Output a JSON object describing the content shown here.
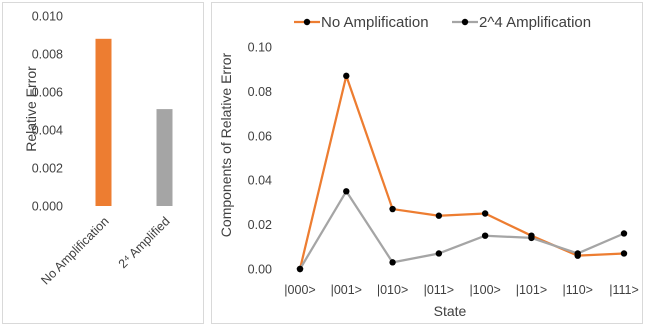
{
  "chart_data": [
    {
      "type": "bar",
      "categories": [
        "No Amplification",
        "2⁴ Amplified"
      ],
      "values": [
        0.0088,
        0.0051
      ],
      "bar_colors": [
        "#ed7d31",
        "#a5a5a5"
      ],
      "title": "",
      "xlabel": "",
      "ylabel": "Relative Error",
      "ylim": [
        0,
        0.01
      ],
      "yticks": [
        "0.000",
        "0.002",
        "0.004",
        "0.006",
        "0.008",
        "0.010"
      ],
      "grid": false
    },
    {
      "type": "line",
      "categories": [
        "|000>",
        "|001>",
        "|010>",
        "|011>",
        "|100>",
        "|101>",
        "|110>",
        "|111>"
      ],
      "series": [
        {
          "name": "No Amplification",
          "color": "#ed7d31",
          "values": [
            0.0,
            0.087,
            0.027,
            0.024,
            0.025,
            0.015,
            0.006,
            0.007
          ]
        },
        {
          "name": "2^4 Amplification",
          "color": "#a5a5a5",
          "values": [
            0.0,
            0.035,
            0.003,
            0.007,
            0.015,
            0.014,
            0.007,
            0.016
          ]
        }
      ],
      "marker_color": "#000000",
      "title": "",
      "xlabel": "State",
      "ylabel": "Components of Relative Error",
      "ylim": [
        0,
        0.1
      ],
      "yticks": [
        "0.00",
        "0.02",
        "0.04",
        "0.06",
        "0.08",
        "0.10"
      ],
      "legend_position": "top",
      "grid": false
    }
  ]
}
